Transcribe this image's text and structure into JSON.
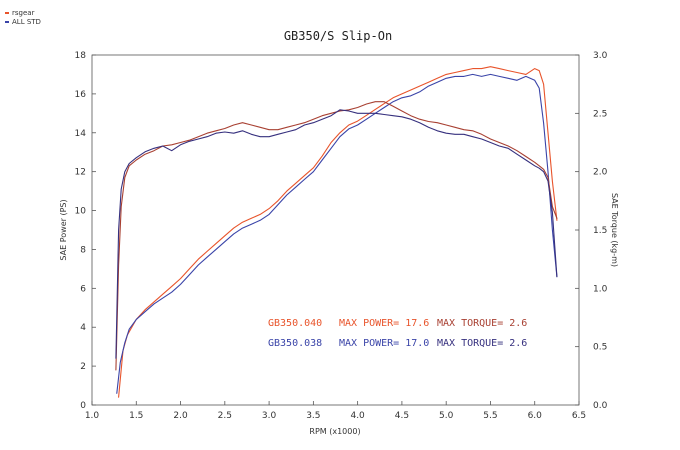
{
  "chart_data": {
    "type": "line",
    "title": "GB350/S Slip-On",
    "xlabel": "RPM (x1000)",
    "ylabel_left": "SAE Power (PS)",
    "ylabel_right": "SAE Torque (kg-m)",
    "xlim": [
      1.0,
      6.5
    ],
    "ylim_left": [
      0,
      18
    ],
    "ylim_right": [
      0.0,
      3.0
    ],
    "x_ticks": [
      "1.0",
      "1.5",
      "2.0",
      "2.5",
      "3.0",
      "3.5",
      "4.0",
      "4.5",
      "5.0",
      "5.5",
      "6.0",
      "6.5"
    ],
    "y_left_ticks": [
      "0",
      "2",
      "4",
      "6",
      "8",
      "10",
      "12",
      "14",
      "16",
      "18"
    ],
    "y_right_ticks": [
      "0.0",
      "0.5",
      "1.0",
      "1.5",
      "2.0",
      "2.5",
      "3.0"
    ],
    "grid": false,
    "legend": {
      "placement": "top-left",
      "entries": [
        {
          "label": "rsgear",
          "color": "#e8542b"
        },
        {
          "label": "ALL STD",
          "color": "#3a44a8"
        }
      ]
    },
    "series": [
      {
        "name": "rsgear",
        "color": "#e8542b",
        "axis": "left",
        "x": [
          1.3,
          1.35,
          1.4,
          1.5,
          1.6,
          1.7,
          1.8,
          1.9,
          2.0,
          2.1,
          2.2,
          2.3,
          2.4,
          2.5,
          2.6,
          2.7,
          2.8,
          2.9,
          3.0,
          3.1,
          3.2,
          3.3,
          3.4,
          3.5,
          3.6,
          3.7,
          3.8,
          3.9,
          4.0,
          4.1,
          4.2,
          4.3,
          4.4,
          4.5,
          4.6,
          4.7,
          4.8,
          4.9,
          5.0,
          5.1,
          5.2,
          5.3,
          5.4,
          5.5,
          5.6,
          5.7,
          5.8,
          5.9,
          6.0,
          6.05,
          6.1,
          6.15,
          6.2,
          6.25
        ],
        "values": [
          0.4,
          2.8,
          3.6,
          4.4,
          4.9,
          5.3,
          5.7,
          6.1,
          6.5,
          7.0,
          7.5,
          7.9,
          8.3,
          8.7,
          9.1,
          9.4,
          9.6,
          9.8,
          10.1,
          10.5,
          11.0,
          11.4,
          11.8,
          12.2,
          12.8,
          13.5,
          14.0,
          14.4,
          14.6,
          14.9,
          15.2,
          15.5,
          15.8,
          16.0,
          16.2,
          16.4,
          16.6,
          16.8,
          17.0,
          17.1,
          17.2,
          17.3,
          17.3,
          17.4,
          17.3,
          17.2,
          17.1,
          17.0,
          17.3,
          17.2,
          16.5,
          14.0,
          11.5,
          9.5
        ]
      },
      {
        "name": "ALL STD",
        "color": "#3a44a8",
        "axis": "left",
        "x": [
          1.28,
          1.32,
          1.37,
          1.42,
          1.5,
          1.6,
          1.7,
          1.8,
          1.9,
          2.0,
          2.1,
          2.2,
          2.3,
          2.4,
          2.5,
          2.6,
          2.7,
          2.8,
          2.9,
          3.0,
          3.1,
          3.2,
          3.3,
          3.4,
          3.5,
          3.6,
          3.7,
          3.8,
          3.9,
          4.0,
          4.1,
          4.2,
          4.3,
          4.4,
          4.5,
          4.6,
          4.7,
          4.8,
          4.9,
          5.0,
          5.1,
          5.2,
          5.3,
          5.4,
          5.5,
          5.6,
          5.7,
          5.8,
          5.9,
          6.0,
          6.05,
          6.1,
          6.15,
          6.2,
          6.25
        ],
        "values": [
          0.6,
          2.2,
          3.2,
          3.9,
          4.4,
          4.8,
          5.2,
          5.5,
          5.8,
          6.2,
          6.7,
          7.2,
          7.6,
          8.0,
          8.4,
          8.8,
          9.1,
          9.3,
          9.5,
          9.8,
          10.3,
          10.8,
          11.2,
          11.6,
          12.0,
          12.6,
          13.2,
          13.8,
          14.2,
          14.4,
          14.7,
          15.0,
          15.3,
          15.6,
          15.8,
          15.9,
          16.1,
          16.4,
          16.6,
          16.8,
          16.9,
          16.9,
          17.0,
          16.9,
          17.0,
          16.9,
          16.8,
          16.7,
          16.9,
          16.7,
          16.3,
          14.5,
          12.0,
          9.0,
          6.6
        ]
      },
      {
        "name": "rsgear",
        "color": "#a84032",
        "axis": "right",
        "x": [
          1.27,
          1.3,
          1.33,
          1.37,
          1.42,
          1.5,
          1.6,
          1.7,
          1.8,
          1.9,
          2.0,
          2.1,
          2.2,
          2.3,
          2.4,
          2.5,
          2.6,
          2.7,
          2.8,
          2.9,
          3.0,
          3.1,
          3.2,
          3.3,
          3.4,
          3.5,
          3.6,
          3.7,
          3.8,
          3.9,
          4.0,
          4.1,
          4.2,
          4.3,
          4.4,
          4.5,
          4.6,
          4.7,
          4.8,
          4.9,
          5.0,
          5.1,
          5.2,
          5.3,
          5.4,
          5.5,
          5.6,
          5.7,
          5.8,
          5.9,
          6.0,
          6.05,
          6.1,
          6.15,
          6.2,
          6.25
        ],
        "values": [
          0.3,
          1.2,
          1.7,
          1.95,
          2.05,
          2.1,
          2.15,
          2.18,
          2.22,
          2.23,
          2.25,
          2.27,
          2.3,
          2.33,
          2.35,
          2.37,
          2.4,
          2.42,
          2.4,
          2.38,
          2.36,
          2.36,
          2.38,
          2.4,
          2.42,
          2.45,
          2.48,
          2.5,
          2.52,
          2.53,
          2.55,
          2.58,
          2.6,
          2.6,
          2.56,
          2.52,
          2.48,
          2.45,
          2.43,
          2.42,
          2.4,
          2.38,
          2.36,
          2.35,
          2.32,
          2.28,
          2.25,
          2.22,
          2.18,
          2.13,
          2.08,
          2.05,
          2.02,
          1.95,
          1.7,
          1.6
        ]
      },
      {
        "name": "ALL STD",
        "color": "#36307e",
        "axis": "right",
        "x": [
          1.27,
          1.3,
          1.33,
          1.37,
          1.42,
          1.5,
          1.6,
          1.7,
          1.8,
          1.9,
          2.0,
          2.1,
          2.2,
          2.3,
          2.4,
          2.5,
          2.6,
          2.7,
          2.8,
          2.9,
          3.0,
          3.1,
          3.2,
          3.3,
          3.4,
          3.5,
          3.6,
          3.7,
          3.8,
          3.9,
          4.0,
          4.1,
          4.2,
          4.3,
          4.4,
          4.5,
          4.6,
          4.7,
          4.8,
          4.9,
          5.0,
          5.1,
          5.2,
          5.3,
          5.4,
          5.5,
          5.6,
          5.7,
          5.8,
          5.9,
          6.0,
          6.05,
          6.1,
          6.15,
          6.2,
          6.25
        ],
        "values": [
          0.4,
          1.5,
          1.85,
          2.0,
          2.07,
          2.12,
          2.17,
          2.2,
          2.22,
          2.18,
          2.23,
          2.26,
          2.28,
          2.3,
          2.33,
          2.34,
          2.33,
          2.35,
          2.32,
          2.3,
          2.3,
          2.32,
          2.34,
          2.36,
          2.4,
          2.42,
          2.45,
          2.48,
          2.53,
          2.52,
          2.5,
          2.5,
          2.5,
          2.49,
          2.48,
          2.47,
          2.45,
          2.42,
          2.38,
          2.35,
          2.33,
          2.32,
          2.32,
          2.3,
          2.28,
          2.25,
          2.22,
          2.2,
          2.15,
          2.1,
          2.05,
          2.03,
          2.0,
          1.92,
          1.65,
          1.1
        ]
      }
    ],
    "annotations": [
      {
        "label": "GB350.040",
        "power": "MAX POWER= 17.6",
        "torque": "MAX TORQUE= 2.6",
        "color": "#e8542b",
        "torque_color": "#a84032"
      },
      {
        "label": "GB350.038",
        "power": "MAX POWER= 17.0",
        "torque": "MAX TORQUE= 2.6",
        "color": "#3a44a8",
        "torque_color": "#36307e"
      }
    ]
  }
}
